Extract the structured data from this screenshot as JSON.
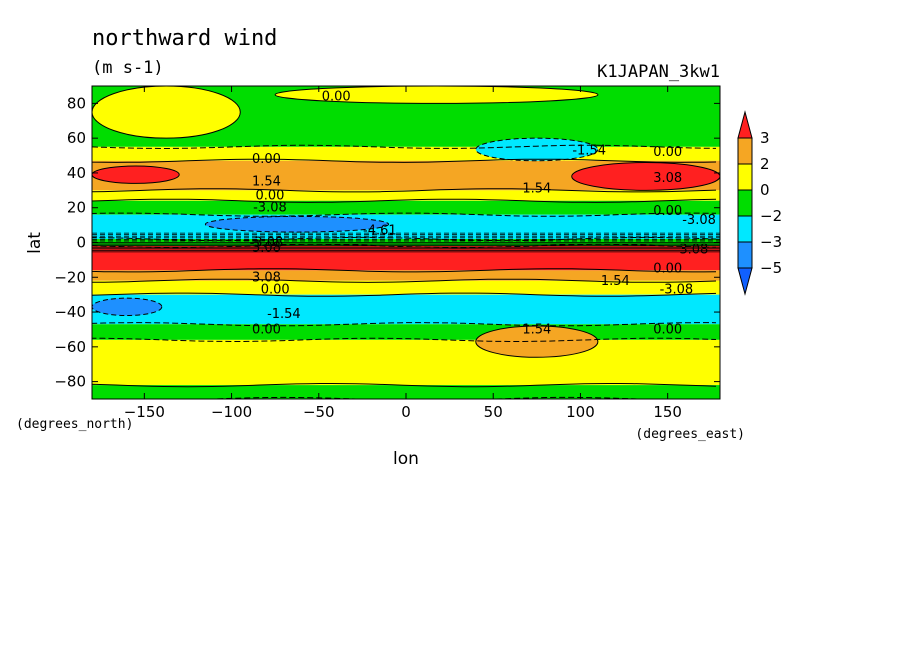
{
  "chart_data": {
    "type": "heatmap",
    "title": "northward wind",
    "units": "(m s-1)",
    "dataset_label": "K1JAPAN_3kw1",
    "xlabel": "lon",
    "ylabel": "lat",
    "x_unit_label": "(degrees_east)",
    "y_unit_label": "(degrees_north)",
    "xlim": [
      -180,
      180
    ],
    "ylim": [
      -90,
      90
    ],
    "x_ticks": [
      -150,
      -100,
      -50,
      0,
      50,
      100,
      150
    ],
    "y_ticks": [
      80,
      60,
      40,
      20,
      0,
      -20,
      -40,
      -60,
      -80
    ],
    "colorbar": {
      "levels": [
        3,
        2,
        0,
        -2,
        -3,
        -5
      ],
      "colors": [
        "#ff2020",
        "#f5a623",
        "#ffff00",
        "#00dd00",
        "#00e8ff",
        "#1e90ff",
        "#1060ff"
      ]
    },
    "colors": {
      "strong_positive": "#ff2020",
      "positive": "#f5a623",
      "weak_positive": "#ffff00",
      "weak_negative": "#00dd00",
      "negative": "#00e8ff",
      "strong_negative": "#1e90ff"
    },
    "bands": [
      {
        "lat_min": 55,
        "lat_max": 90,
        "category": "weak_negative"
      },
      {
        "lat_min": 47,
        "lat_max": 55,
        "category": "weak_positive"
      },
      {
        "lat_min": 30,
        "lat_max": 47,
        "category": "positive"
      },
      {
        "lat_min": 24,
        "lat_max": 30,
        "category": "weak_positive"
      },
      {
        "lat_min": 16,
        "lat_max": 24,
        "category": "weak_negative"
      },
      {
        "lat_min": 2,
        "lat_max": 16,
        "category": "negative"
      },
      {
        "lat_min": -2,
        "lat_max": 2,
        "category": "weak_negative"
      },
      {
        "lat_min": -16,
        "lat_max": -2,
        "category": "strong_positive"
      },
      {
        "lat_min": -22,
        "lat_max": -16,
        "category": "positive"
      },
      {
        "lat_min": -30,
        "lat_max": -22,
        "category": "weak_positive"
      },
      {
        "lat_min": -47,
        "lat_max": -30,
        "category": "negative"
      },
      {
        "lat_min": -56,
        "lat_max": -47,
        "category": "weak_negative"
      },
      {
        "lat_min": -82,
        "lat_max": -56,
        "category": "weak_positive"
      },
      {
        "lat_min": -90,
        "lat_max": -82,
        "category": "weak_negative"
      }
    ],
    "features": [
      {
        "lon": [
          -180,
          -95
        ],
        "lat": [
          60,
          90
        ],
        "category": "weak_positive"
      },
      {
        "lon": [
          -75,
          110
        ],
        "lat": [
          80,
          90
        ],
        "category": "weak_positive"
      },
      {
        "lon": [
          40,
          110
        ],
        "lat": [
          47,
          60
        ],
        "category": "negative"
      },
      {
        "lon": [
          -180,
          -130
        ],
        "lat": [
          34,
          44
        ],
        "category": "strong_positive"
      },
      {
        "lon": [
          95,
          180
        ],
        "lat": [
          30,
          46
        ],
        "category": "strong_positive"
      },
      {
        "lon": [
          -115,
          -10
        ],
        "lat": [
          6,
          15
        ],
        "category": "strong_negative"
      },
      {
        "lon": [
          -180,
          -140
        ],
        "lat": [
          -42,
          -32
        ],
        "category": "strong_negative"
      },
      {
        "lon": [
          40,
          110
        ],
        "lat": [
          -66,
          -48
        ],
        "category": "positive"
      }
    ],
    "contour_labels": [
      {
        "text": "0.00",
        "lon": -40,
        "lat": 84
      },
      {
        "text": "-1.54",
        "lon": 105,
        "lat": 53
      },
      {
        "text": "0.00",
        "lon": 150,
        "lat": 52
      },
      {
        "text": "0.00",
        "lon": -80,
        "lat": 48
      },
      {
        "text": "1.54",
        "lon": -80,
        "lat": 35
      },
      {
        "text": "0.00",
        "lon": -78,
        "lat": 27
      },
      {
        "text": "-3.08",
        "lon": -78,
        "lat": 20
      },
      {
        "text": "1.54",
        "lon": 75,
        "lat": 31
      },
      {
        "text": "3.08",
        "lon": 150,
        "lat": 37
      },
      {
        "text": "0.00",
        "lon": 150,
        "lat": 18
      },
      {
        "text": "-3.08",
        "lon": 168,
        "lat": 13
      },
      {
        "text": "-4.61",
        "lon": -15,
        "lat": 7
      },
      {
        "text": "-3.08",
        "lon": -80,
        "lat": 0
      },
      {
        "text": "3.08",
        "lon": -80,
        "lat": -3
      },
      {
        "text": "3.08",
        "lon": 165,
        "lat": -4
      },
      {
        "text": "3.08",
        "lon": -80,
        "lat": -20
      },
      {
        "text": "0.00",
        "lon": -75,
        "lat": -27
      },
      {
        "text": "1.54",
        "lon": 120,
        "lat": -22
      },
      {
        "text": "0.00",
        "lon": 150,
        "lat": -15
      },
      {
        "text": "-3.08",
        "lon": 155,
        "lat": -27
      },
      {
        "text": "-1.54",
        "lon": -70,
        "lat": -41
      },
      {
        "text": "0.00",
        "lon": -80,
        "lat": -50
      },
      {
        "text": "1.54",
        "lon": 75,
        "lat": -50
      },
      {
        "text": "0.00",
        "lon": 150,
        "lat": -50
      }
    ]
  }
}
